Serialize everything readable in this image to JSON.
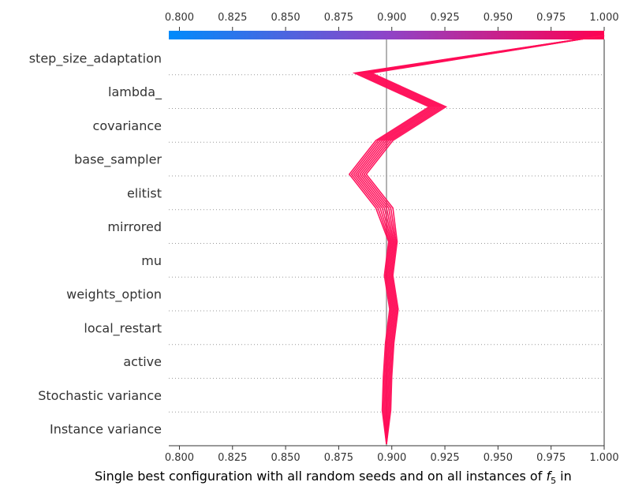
{
  "chart_data": {
    "type": "line",
    "title": "",
    "xlabel_text": "Single best configuration with all random seeds and on all instances of ",
    "xlabel_math": "f",
    "xlabel_sub": "5",
    "xlabel_suffix": " in",
    "ylabel": "",
    "xlim": [
      0.795,
      1.0
    ],
    "x_ticks": [
      "0.800",
      "0.825",
      "0.850",
      "0.875",
      "0.900",
      "0.925",
      "0.950",
      "0.975",
      "1.000"
    ],
    "x_tick_values": [
      0.8,
      0.825,
      0.85,
      0.875,
      0.9,
      0.925,
      0.95,
      0.975,
      1.0
    ],
    "base_value": 0.8975,
    "features": [
      "step_size_adaptation",
      "lambda_",
      "covariance",
      "base_sampler",
      "elitist",
      "mirrored",
      "mu",
      "weights_option",
      "local_restart",
      "active",
      "Stochastic variance",
      "Instance variance"
    ],
    "series_center": [
      1.0,
      0.8865,
      0.9215,
      0.8965,
      0.884,
      0.8965,
      0.9005,
      0.8985,
      0.901,
      0.899,
      0.898,
      0.8975,
      0.8975
    ],
    "series_offsets": [
      -0.004,
      -0.003,
      -0.002,
      -0.001,
      0.0,
      0.001,
      0.002,
      0.003,
      0.004
    ],
    "line_color": "#ff0d57",
    "base_line_color": "#999999",
    "colorbar": {
      "from": "#008bfb",
      "mid": "#8e44c8",
      "to": "#ff0051"
    },
    "grid": false,
    "legend": "none"
  }
}
